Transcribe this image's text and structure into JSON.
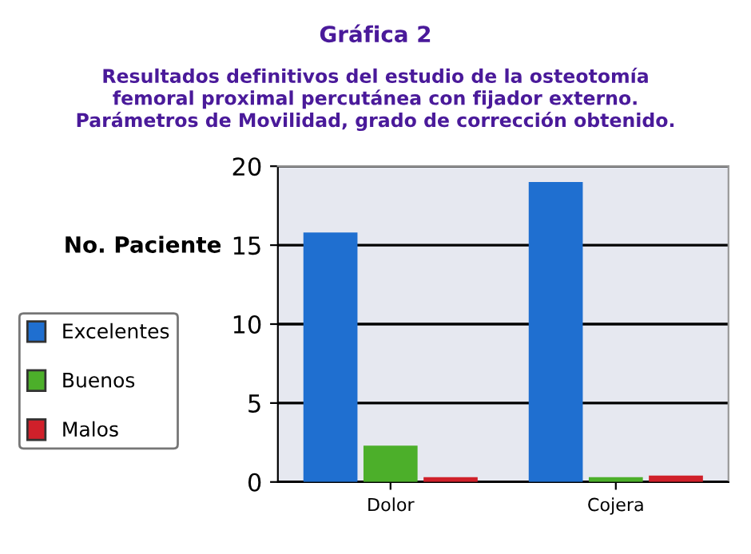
{
  "chart_data": {
    "type": "bar",
    "title": "Gráfica 2",
    "subtitle": "Resultados definitivos del estudio de la osteotomía\nfemoral proximal percutánea con fijador externo.\nParámetros de Movilidad, grado de corrección obtenido.",
    "ylabel": "No. Paciente",
    "categories": [
      "Dolor",
      "Cojera"
    ],
    "series": [
      {
        "name": "Excelentes",
        "color": "#1f6fd0",
        "values": [
          15.8,
          19
        ]
      },
      {
        "name": "Buenos",
        "color": "#4caf2a",
        "values": [
          2.3,
          0.3
        ]
      },
      {
        "name": "Malos",
        "color": "#d0202a",
        "values": [
          0.3,
          0.4
        ]
      }
    ],
    "ylim": [
      0,
      20
    ],
    "yticks": [
      0,
      5,
      10,
      15,
      20
    ],
    "grid": "y",
    "legend": "left"
  }
}
